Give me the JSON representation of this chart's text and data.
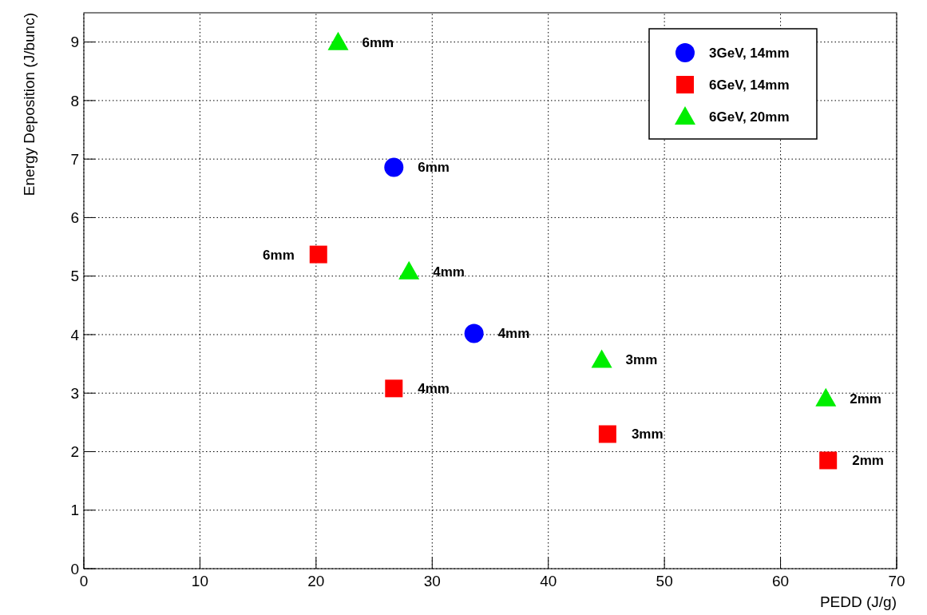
{
  "chart_data": {
    "type": "scatter",
    "xlabel": "PEDD (J/g)",
    "ylabel": "Energy Deposition (J/bunc)",
    "xlim": [
      0,
      70
    ],
    "xticks": [
      0,
      10,
      20,
      30,
      40,
      50,
      60,
      70
    ],
    "ylim": [
      0,
      9.5
    ],
    "yticks": [
      0,
      1,
      2,
      3,
      4,
      5,
      6,
      7,
      8,
      9
    ],
    "grid": true,
    "legend": "top right",
    "series": [
      {
        "name": "3GeV, 14mm",
        "color": "#0000ff",
        "marker": "circle",
        "x": [
          26.7,
          33.6
        ],
        "values": [
          6.86,
          4.02
        ]
      },
      {
        "name": "6GeV, 14mm",
        "color": "#ff0000",
        "marker": "square",
        "x": [
          20.2,
          26.7,
          45.1,
          64.1
        ],
        "values": [
          5.37,
          3.08,
          2.3,
          1.85
        ]
      },
      {
        "name": "6GeV, 20mm",
        "color": "#00ee00",
        "marker": "triangle",
        "x": [
          21.9,
          28.0,
          44.6,
          63.9
        ],
        "values": [
          9.0,
          5.08,
          3.57,
          2.91
        ]
      }
    ],
    "annotations": [
      {
        "text": "6mm",
        "x": 21.9,
        "y": 9.0
      },
      {
        "text": "6mm",
        "x": 26.7,
        "y": 6.86
      },
      {
        "text": "6mm",
        "x": 20.2,
        "y": 5.37
      },
      {
        "text": "4mm",
        "x": 28.0,
        "y": 5.08
      },
      {
        "text": "4mm",
        "x": 33.6,
        "y": 4.02
      },
      {
        "text": "4mm",
        "x": 26.7,
        "y": 3.08
      },
      {
        "text": "3mm",
        "x": 44.6,
        "y": 3.57
      },
      {
        "text": "3mm",
        "x": 45.1,
        "y": 2.3
      },
      {
        "text": "2mm",
        "x": 63.9,
        "y": 2.91
      },
      {
        "text": "2mm",
        "x": 64.1,
        "y": 1.85
      }
    ]
  }
}
